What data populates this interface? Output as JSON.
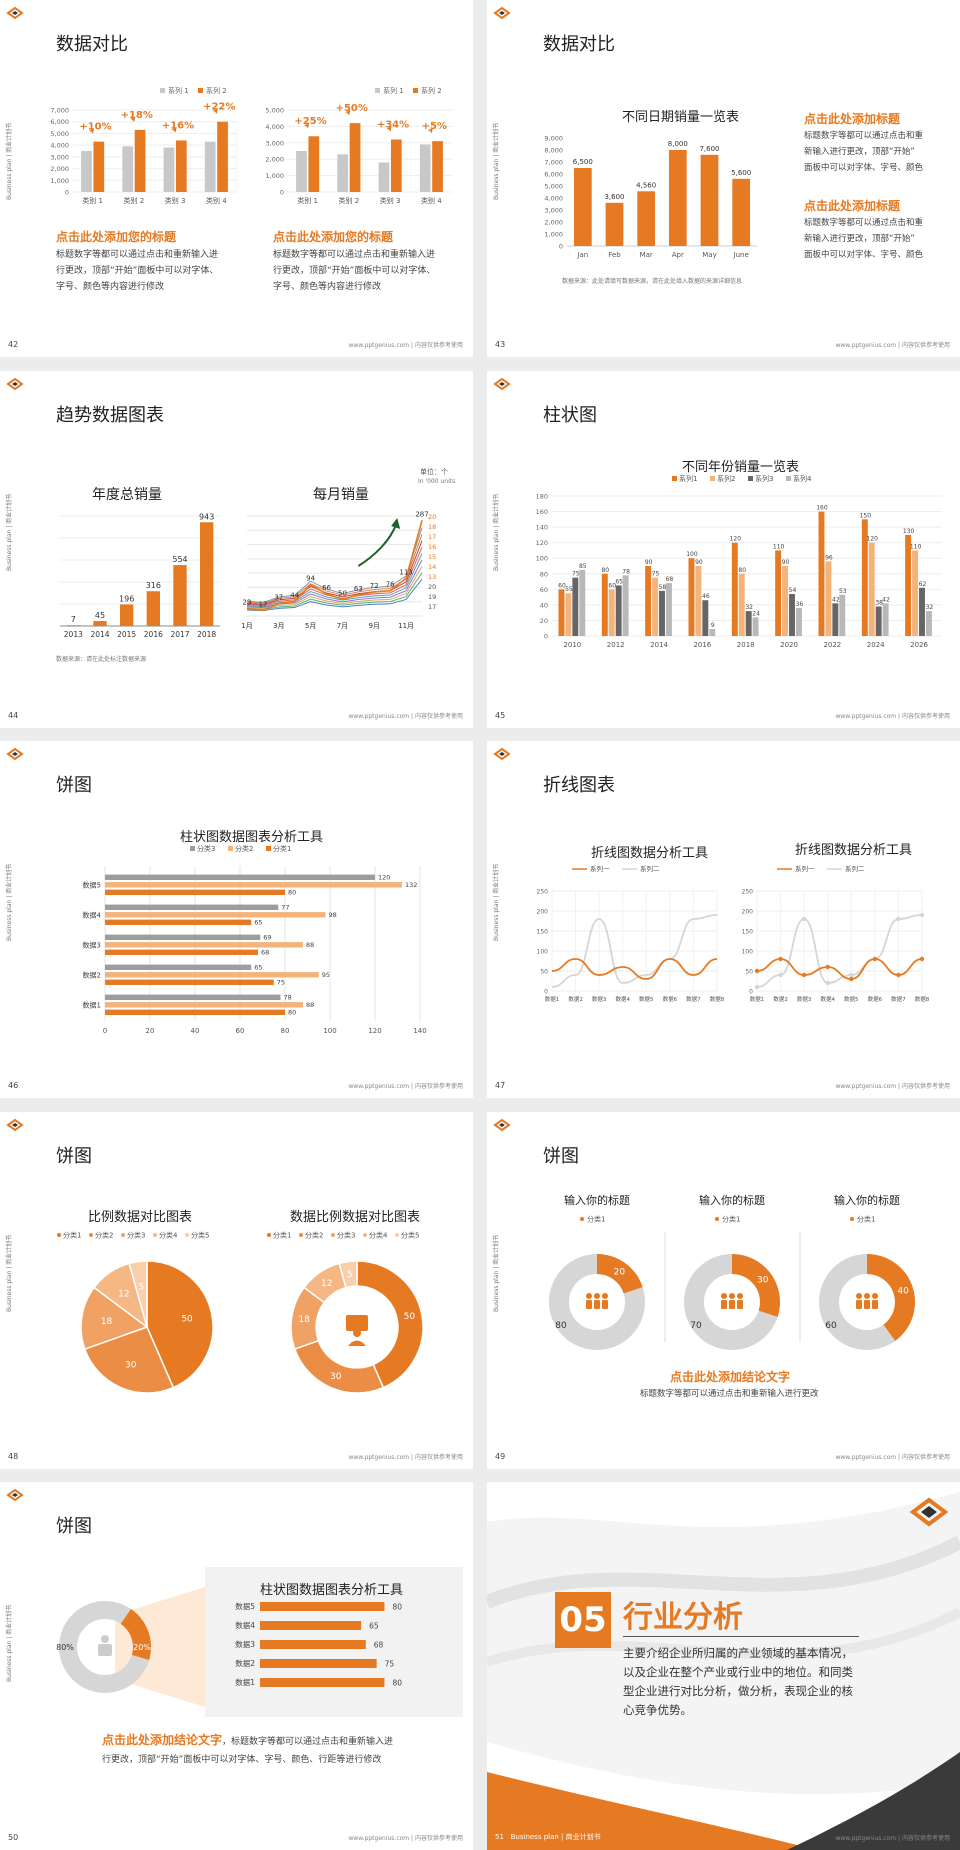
{
  "footer_text": "www.pptgenius.com | 内容仅供参考使用",
  "vertical_label": "Business plan | 商业计划书",
  "slide42": {
    "title": "数据对比",
    "legend": [
      "系列 1",
      "系列 2"
    ],
    "left_heading": "点击此处添加您的标题",
    "left_body": [
      "标题数字等都可以通过点击和重新输入进",
      "行更改，顶部“开始”面板中可以对字体、",
      "字号、颜色等内容进行修改"
    ],
    "right_heading": "点击此处添加您的标题",
    "right_body": [
      "标题数字等都可以通过点击和重新输入进",
      "行更改，顶部“开始”面板中可以对字体、",
      "字号、颜色等内容进行修改"
    ],
    "page": "42"
  },
  "slide43": {
    "title": "数据对比",
    "chart_title": "不同日期销量一览表",
    "source": "数据来源：此处请填写数据来源，请在此处填入数据的来源详细信息",
    "h1": "点击此处添加标题",
    "b1": [
      "标题数字等都可以通过点击和重",
      "新输入进行更改，顶部“开始”",
      "面板中可以对字体、字号、颜色"
    ],
    "h2": "点击此处添加标题",
    "b2": [
      "标题数字等都可以通过点击和重",
      "新输入进行更改，顶部“开始”",
      "面板中可以对字体、字号、颜色"
    ],
    "page": "43"
  },
  "slide44": {
    "title": "趋势数据图表",
    "left_title": "年度总销量",
    "right_title": "每月销量",
    "unit1": "单位：个",
    "unit2": "In '000 units",
    "source": "数据来源：请在此处标注数据来源",
    "page": "44"
  },
  "slide45": {
    "title": "柱状图",
    "chart_title": "不同年份销量一览表",
    "page": "45"
  },
  "slide46": {
    "title": "饼图",
    "chart_title": "柱状图数据图表分析工具",
    "page": "46"
  },
  "slide47": {
    "title": "折线图表",
    "left_title": "折线图数据分析工具",
    "right_title": "折线图数据分析工具",
    "page": "47"
  },
  "slide48": {
    "title": "饼图",
    "left_title": "比例数据对比图表",
    "right_title": "数据比例数据对比图表",
    "page": "48"
  },
  "slide49": {
    "title": "饼图",
    "donut_titles": [
      "输入你的标题",
      "输入你的标题",
      "输入你的标题"
    ],
    "legend": "分类1",
    "conclusion": "点击此处添加结论文字",
    "conclusion_body": "标题数字等都可以通过点击和重新输入进行更改",
    "page": "49"
  },
  "slide50": {
    "title": "饼图",
    "panel_title": "柱状图数据图表分析工具",
    "conclusion": "点击此处添加结论文字",
    "conclusion_rest": "，标题数字等都可以通过点击和重新输入进",
    "conclusion_line2": "行更改，顶部“开始”面板中可以对字体、字号、颜色、行距等进行修改",
    "page": "50"
  },
  "slide51": {
    "number": "05",
    "title": "行业分析",
    "body": [
      "主要介绍企业所归属的产业领域的基本情况，",
      "以及企业在整个产业或行业中的地位。和同类",
      "型企业进行对比分析，做分析，表现企业的核",
      "心竞争优势。"
    ],
    "footer_left": "Business plan | 商业计划书",
    "page": "51"
  },
  "colors": {
    "accent": "#e67a22",
    "gray": "#c8c8c8",
    "dark_gray": "#666666",
    "light_orange": "#f5b37a"
  },
  "chart_data": [
    {
      "id": "s42a",
      "type": "bar",
      "categories": [
        "类别 1",
        "类别 2",
        "类别 3",
        "类别 4"
      ],
      "series": [
        {
          "name": "系列 1",
          "values": [
            3500,
            3900,
            3800,
            4300
          ]
        },
        {
          "name": "系列 2",
          "values": [
            4300,
            5300,
            4400,
            6000
          ]
        }
      ],
      "annotations": [
        "+10%",
        "+18%",
        "+16%",
        "+22%"
      ],
      "yticks": [
        "0",
        "1,000",
        "2,000",
        "3,000",
        "4,000",
        "5,000",
        "6,000",
        "7,000"
      ],
      "ylim": [
        0,
        7000
      ]
    },
    {
      "id": "s42b",
      "type": "bar",
      "categories": [
        "类别 1",
        "类别 2",
        "类别 3",
        "类别 4"
      ],
      "series": [
        {
          "name": "系列 1",
          "values": [
            2500,
            2300,
            1800,
            2900
          ]
        },
        {
          "name": "系列 2",
          "values": [
            3400,
            4200,
            3200,
            3100
          ]
        }
      ],
      "annotations": [
        "+25%",
        "+50%",
        "+34%",
        "+5%"
      ],
      "yticks": [
        "0",
        "1,000",
        "2,000",
        "3,000",
        "4,000",
        "5,000"
      ],
      "ylim": [
        0,
        5000
      ]
    },
    {
      "id": "s43",
      "type": "bar",
      "title": "不同日期销量一览表",
      "categories": [
        "Jan",
        "Feb",
        "Mar",
        "Apr",
        "May",
        "June"
      ],
      "values": [
        6500,
        3600,
        4560,
        8000,
        7600,
        5600
      ],
      "labels": [
        "6,500",
        "3,600",
        "4,560",
        "8,000",
        "7,600",
        "5,600"
      ],
      "yticks": [
        "0",
        "1,000",
        "2,000",
        "3,000",
        "4,000",
        "5,000",
        "6,000",
        "7,000",
        "8,000",
        "9,000"
      ],
      "ylim": [
        0,
        9000
      ]
    },
    {
      "id": "s44a",
      "type": "bar",
      "title": "年度总销量",
      "categories": [
        "2013",
        "2014",
        "2015",
        "2016",
        "2017",
        "2018"
      ],
      "values": [
        7,
        45,
        196,
        316,
        554,
        943
      ],
      "ylim": [
        0,
        1000
      ]
    },
    {
      "id": "s44b",
      "type": "line",
      "title": "每月销量",
      "xticks": [
        "1月",
        "3月",
        "5月",
        "7月",
        "9月",
        "11月"
      ],
      "main": [
        23,
        17,
        37,
        44,
        94,
        66,
        50,
        63,
        72,
        76,
        113,
        287
      ],
      "right_labels": [
        "20",
        "18",
        "17",
        "16",
        "15",
        "14",
        "13",
        "20",
        "19",
        "17"
      ],
      "ylim": [
        0,
        300
      ]
    },
    {
      "id": "s45",
      "type": "bar",
      "title": "不同年份销量一览表",
      "categories": [
        "2010",
        "2012",
        "2014",
        "2016",
        "2018",
        "2020",
        "2022",
        "2024",
        "2026"
      ],
      "series": [
        {
          "name": "系列1",
          "values": [
            60,
            80,
            90,
            100,
            120,
            110,
            160,
            150,
            130
          ]
        },
        {
          "name": "系列2",
          "values": [
            55,
            60,
            75,
            90,
            80,
            90,
            96,
            120,
            110
          ]
        },
        {
          "name": "系列3",
          "values": [
            75,
            65,
            58,
            46,
            32,
            54,
            42,
            38,
            62
          ]
        },
        {
          "name": "系列4",
          "values": [
            85,
            78,
            68,
            9,
            24,
            36,
            53,
            42,
            32
          ]
        }
      ],
      "yticks": [
        "0",
        "20",
        "40",
        "60",
        "80",
        "100",
        "120",
        "140",
        "160",
        "180"
      ],
      "ylim": [
        0,
        180
      ]
    },
    {
      "id": "s46",
      "type": "bar",
      "orientation": "horizontal",
      "title": "柱状图数据图表分析工具",
      "categories": [
        "数据5",
        "数据4",
        "数据3",
        "数据2",
        "数据1"
      ],
      "series": [
        {
          "name": "分类3",
          "values": [
            120,
            77,
            69,
            65,
            78
          ]
        },
        {
          "name": "分类2",
          "values": [
            132,
            98,
            88,
            95,
            88
          ]
        },
        {
          "name": "分类1",
          "values": [
            80,
            65,
            68,
            75,
            80
          ]
        }
      ],
      "xticks": [
        "0",
        "20",
        "40",
        "60",
        "80",
        "100",
        "120",
        "140"
      ],
      "xlim": [
        0,
        140
      ]
    },
    {
      "id": "s47a",
      "type": "line",
      "title": "折线图数据分析工具",
      "categories": [
        "数据1",
        "数据2",
        "数据3",
        "数据4",
        "数据5",
        "数据6",
        "数据7",
        "数据8"
      ],
      "series": [
        {
          "name": "系列一",
          "values": [
            50,
            80,
            40,
            60,
            30,
            80,
            40,
            80
          ]
        },
        {
          "name": "系列二",
          "values": [
            10,
            40,
            180,
            20,
            40,
            80,
            180,
            190
          ]
        }
      ],
      "yticks": [
        "0",
        "50",
        "100",
        "150",
        "200",
        "250"
      ],
      "ylim": [
        0,
        250
      ]
    },
    {
      "id": "s47b",
      "type": "line",
      "title": "折线图数据分析工具",
      "categories": [
        "数据1",
        "数据2",
        "数据3",
        "数据4",
        "数据5",
        "数据6",
        "数据7",
        "数据8"
      ],
      "series": [
        {
          "name": "系列一",
          "values": [
            50,
            80,
            40,
            60,
            30,
            80,
            40,
            80
          ]
        },
        {
          "name": "系列二",
          "values": [
            10,
            40,
            180,
            20,
            40,
            80,
            180,
            190
          ]
        }
      ],
      "yticks": [
        "0",
        "50",
        "100",
        "150",
        "200",
        "250"
      ],
      "ylim": [
        0,
        250
      ]
    },
    {
      "id": "s48a",
      "type": "pie",
      "title": "比例数据对比图表",
      "legend": [
        "分类1",
        "分类2",
        "分类3",
        "分类4",
        "分类5"
      ],
      "values": [
        50,
        30,
        18,
        12,
        5
      ]
    },
    {
      "id": "s48b",
      "type": "pie",
      "title": "数据比例数据对比图表",
      "legend": [
        "分类1",
        "分类2",
        "分类3",
        "分类4",
        "分类5"
      ],
      "values": [
        50,
        30,
        18,
        12,
        5
      ]
    },
    {
      "id": "s49a",
      "type": "pie",
      "values": [
        20,
        80
      ]
    },
    {
      "id": "s49b",
      "type": "pie",
      "values": [
        30,
        70
      ]
    },
    {
      "id": "s49c",
      "type": "pie",
      "values": [
        40,
        60
      ]
    },
    {
      "id": "s50pie",
      "type": "pie",
      "values": [
        20,
        80
      ],
      "labels": [
        "20%",
        "80%"
      ]
    },
    {
      "id": "s50bar",
      "type": "bar",
      "orientation": "horizontal",
      "categories": [
        "数据5",
        "数据4",
        "数据3",
        "数据2",
        "数据1"
      ],
      "values": [
        80,
        65,
        68,
        75,
        80
      ],
      "xlim": [
        0,
        90
      ]
    }
  ]
}
